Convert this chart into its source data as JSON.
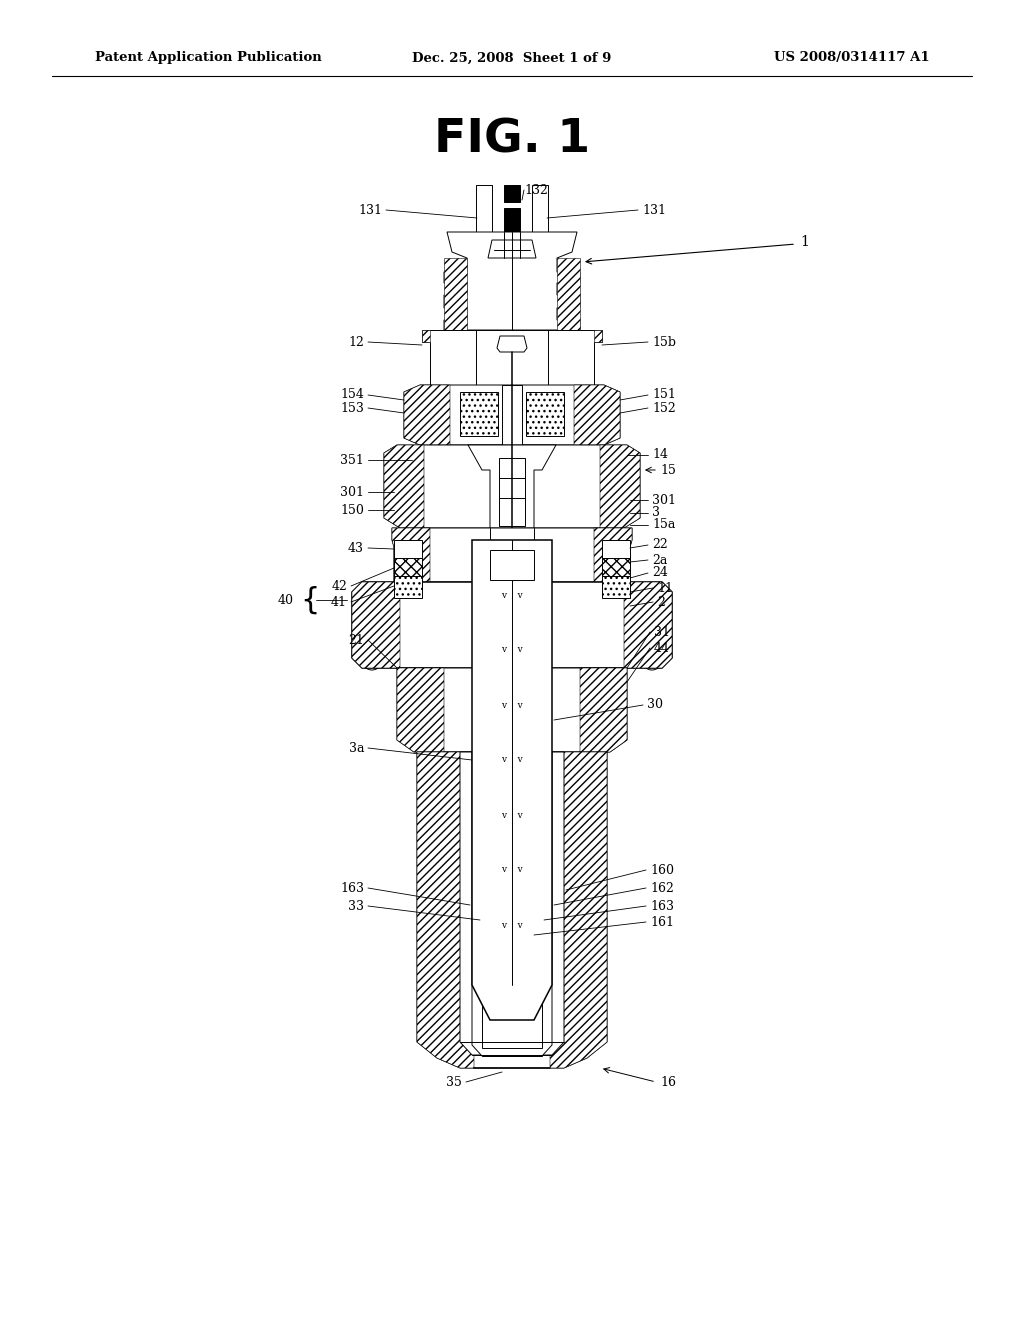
{
  "header_left": "Patent Application Publication",
  "header_center": "Dec. 25, 2008  Sheet 1 of 9",
  "header_right": "US 2008/0314117 A1",
  "title": "FIG. 1",
  "bg": "#ffffff"
}
